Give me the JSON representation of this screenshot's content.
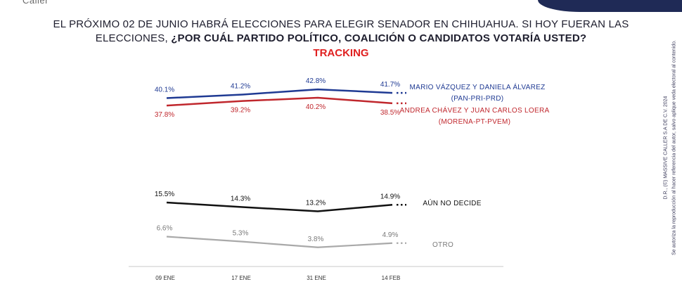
{
  "header": {
    "logo_text": "Caller",
    "title_line1": "EL PRÓXIMO 02 DE JUNIO HABRÁ ELECCIONES PARA ELEGIR SENADOR EN CHIHUAHUA. SI HOY FUERAN LAS",
    "title_line2_plain": "ELECCIONES, ",
    "title_line2_bold": "¿POR CUÁL PARTIDO POLÍTICO, COALICIÓN O CANDIDATOS VOTARÍA USTED?",
    "subtitle": "TRACKING"
  },
  "side_note": {
    "line1": "D.R., (©) MASSIVE CALLER S.A DE C.V. 2024",
    "line2": "Se autoriza la reproducción al hacer referencia del autor, salvo aplique veda electoral al contenido."
  },
  "colors": {
    "pan": "#1f3a93",
    "morena": "#c0272d",
    "undecided": "#111111",
    "other": "#a9a9a9",
    "title": "#1e1e2e",
    "accent": "#e02020"
  },
  "chart_data": {
    "type": "line",
    "categories": [
      "09 ENE",
      "17 ENE",
      "31 ENE",
      "14 FEB"
    ],
    "y_unit": "%",
    "series": [
      {
        "name_line1": "MARIO VÁZQUEZ Y DANIELA ÁLVAREZ",
        "name_line2": "(PAN-PRI-PRD)",
        "values": [
          40.1,
          41.2,
          42.8,
          41.7
        ],
        "labels": [
          "40.1%",
          "41.2%",
          "42.8%",
          "41.7%"
        ],
        "color": "#1f3a93",
        "label_position": "above"
      },
      {
        "name_line1": "ANDREA CHÁVEZ Y JUAN CARLOS LOERA",
        "name_line2": "(MORENA-PT-PVEM)",
        "values": [
          37.8,
          39.2,
          40.2,
          38.5
        ],
        "labels": [
          "37.8%",
          "39.2%",
          "40.2%",
          "38.5%"
        ],
        "color": "#c0272d",
        "label_position": "below"
      },
      {
        "name_line1": "AÚN NO DECIDE",
        "name_line2": "",
        "values": [
          15.5,
          14.3,
          13.2,
          14.9
        ],
        "labels": [
          "15.5%",
          "14.3%",
          "13.2%",
          "14.9%"
        ],
        "color": "#111111",
        "label_position": "above"
      },
      {
        "name_line1": "OTRO",
        "name_line2": "",
        "values": [
          6.6,
          5.3,
          3.8,
          4.9
        ],
        "labels": [
          "6.6%",
          "5.3%",
          "3.8%",
          "4.9%"
        ],
        "color": "#a9a9a9",
        "label_position": "above"
      }
    ]
  }
}
